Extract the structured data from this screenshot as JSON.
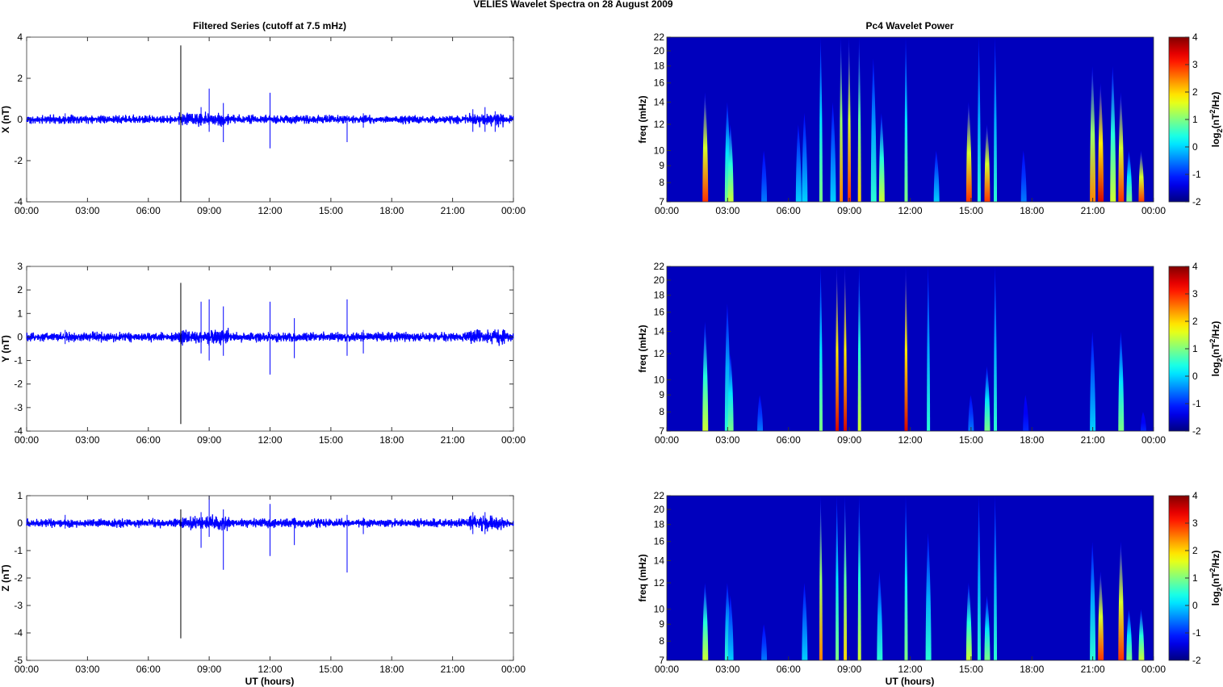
{
  "chart_data": {
    "title": "VELIES Wavelet Spectra on 28 August    2009",
    "time_ticks": [
      "00:00",
      "03:00",
      "06:00",
      "09:00",
      "12:00",
      "15:00",
      "18:00",
      "21:00",
      "00:00"
    ],
    "xlabel": "UT (hours)",
    "left": {
      "type": "line",
      "title": "Filtered Series (cutoff at 7.5 mHz)",
      "series_color": "#0000ff",
      "panels": [
        {
          "name": "X",
          "ylabel": "X (nT)",
          "ylim": [
            -4,
            4
          ],
          "yticks": [
            -4,
            -2,
            0,
            2,
            4
          ],
          "noise_amplitude": 0.15,
          "spikes": [
            [
              1.9,
              0.3,
              -0.2
            ],
            [
              7.6,
              3.6,
              -4
            ],
            [
              8.6,
              0.6,
              -0.3
            ],
            [
              9.0,
              1.5,
              -0.6
            ],
            [
              9.7,
              0.8,
              -1.1
            ],
            [
              12.0,
              1.3,
              -1.4
            ],
            [
              15.8,
              0.2,
              -1.1
            ],
            [
              16.6,
              0.3,
              -0.4
            ],
            [
              22.0,
              0.5,
              -0.6
            ],
            [
              22.6,
              0.6,
              -0.6
            ],
            [
              23.1,
              0.4,
              -0.6
            ]
          ]
        },
        {
          "name": "Y",
          "ylabel": "Y (nT)",
          "ylim": [
            -4,
            3
          ],
          "yticks": [
            -4,
            -3,
            -2,
            -1,
            0,
            1,
            2,
            3
          ],
          "noise_amplitude": 0.15,
          "spikes": [
            [
              1.9,
              0.3,
              -0.3
            ],
            [
              7.6,
              2.3,
              -3.7
            ],
            [
              8.6,
              1.5,
              -0.7
            ],
            [
              9.0,
              1.6,
              -1
            ],
            [
              9.7,
              1.3,
              -0.8
            ],
            [
              12.0,
              1.5,
              -1.6
            ],
            [
              13.2,
              0.8,
              -0.9
            ],
            [
              15.8,
              1.6,
              -0.8
            ],
            [
              16.6,
              0.3,
              -0.7
            ]
          ]
        },
        {
          "name": "Z",
          "ylabel": "Z (nT)",
          "ylim": [
            -5,
            1
          ],
          "yticks": [
            -5,
            -4,
            -3,
            -2,
            -1,
            0,
            1
          ],
          "noise_amplitude": 0.12,
          "spikes": [
            [
              1.9,
              0.3,
              -0.2
            ],
            [
              7.6,
              0.5,
              -4.2
            ],
            [
              8.6,
              0.4,
              -0.9
            ],
            [
              9.0,
              1,
              -0.5
            ],
            [
              9.7,
              0.5,
              -1.7
            ],
            [
              12.0,
              0.7,
              -1.2
            ],
            [
              13.2,
              0.2,
              -0.8
            ],
            [
              15.8,
              0.3,
              -1.8
            ],
            [
              16.6,
              0.2,
              -0.4
            ],
            [
              22.0,
              0.4,
              -0.4
            ],
            [
              22.6,
              0.4,
              -0.4
            ]
          ]
        }
      ]
    },
    "right": {
      "type": "heatmap",
      "title": "Pc4 Wavelet Power",
      "ylabel": "freq (mHz)",
      "ylim": [
        7,
        22
      ],
      "yticks": [
        7,
        8,
        9,
        10,
        12,
        14,
        16,
        18,
        20,
        22
      ],
      "colorbar": {
        "label": "log2(nT2/Hz)",
        "label_main": "log",
        "label_sub": "2",
        "label_rest1": "(nT",
        "label_sup": "2",
        "label_rest2": "/Hz)",
        "range": [
          -2,
          4
        ],
        "ticks": [
          -2,
          -1,
          0,
          1,
          2,
          3,
          4
        ]
      },
      "event_format": "[time_hours, max_freq_mHz, peak_log2_power]",
      "panels": [
        {
          "name": "X",
          "events": [
            [
              1.9,
              15,
              3
            ],
            [
              3.0,
              14,
              1
            ],
            [
              3.15,
              12,
              1.5
            ],
            [
              4.8,
              10,
              -0.5
            ],
            [
              6.5,
              12,
              0
            ],
            [
              6.8,
              13,
              0
            ],
            [
              7.6,
              22,
              1
            ],
            [
              8.2,
              14,
              0
            ],
            [
              8.6,
              22,
              2.5
            ],
            [
              9.0,
              22,
              3
            ],
            [
              9.5,
              22,
              2
            ],
            [
              10.2,
              19,
              0.5
            ],
            [
              10.6,
              13,
              1.5
            ],
            [
              11.8,
              22,
              1
            ],
            [
              13.3,
              10,
              0
            ],
            [
              14.9,
              14,
              3
            ],
            [
              15.4,
              22,
              0.5
            ],
            [
              15.8,
              12,
              3
            ],
            [
              16.2,
              22,
              0.5
            ],
            [
              17.6,
              10,
              -0.5
            ],
            [
              21.0,
              18,
              2.5
            ],
            [
              21.4,
              16,
              3.5
            ],
            [
              22.0,
              18,
              1.5
            ],
            [
              22.4,
              15,
              3
            ],
            [
              22.8,
              10,
              1
            ],
            [
              23.4,
              10,
              3
            ]
          ]
        },
        {
          "name": "Y",
          "events": [
            [
              1.9,
              15,
              1.5
            ],
            [
              3.0,
              17,
              0.5
            ],
            [
              3.15,
              12,
              1
            ],
            [
              4.6,
              9,
              -0.5
            ],
            [
              7.6,
              22,
              1
            ],
            [
              8.4,
              22,
              3.5
            ],
            [
              8.8,
              22,
              3.5
            ],
            [
              9.5,
              22,
              1.5
            ],
            [
              11.8,
              22,
              3.5
            ],
            [
              12.9,
              22,
              0.5
            ],
            [
              15.0,
              9,
              -0.5
            ],
            [
              15.8,
              11,
              1
            ],
            [
              16.2,
              22,
              0.5
            ],
            [
              17.7,
              9,
              -1
            ],
            [
              21.0,
              14,
              0
            ],
            [
              22.4,
              14,
              1
            ],
            [
              23.5,
              8,
              -1
            ]
          ]
        },
        {
          "name": "Z",
          "events": [
            [
              1.9,
              12,
              1.5
            ],
            [
              3.0,
              12,
              0.5
            ],
            [
              3.15,
              11,
              0
            ],
            [
              4.8,
              9,
              -0.5
            ],
            [
              6.8,
              12,
              0
            ],
            [
              7.6,
              22,
              2.5
            ],
            [
              8.4,
              22,
              1
            ],
            [
              8.8,
              22,
              2
            ],
            [
              9.5,
              22,
              1.5
            ],
            [
              10.5,
              13,
              0.5
            ],
            [
              11.8,
              22,
              1
            ],
            [
              12.9,
              17,
              0.5
            ],
            [
              14.9,
              12,
              1.5
            ],
            [
              15.4,
              22,
              0.5
            ],
            [
              15.8,
              11,
              1
            ],
            [
              16.2,
              22,
              0.5
            ],
            [
              21.0,
              16,
              0.5
            ],
            [
              21.4,
              13,
              3
            ],
            [
              22.4,
              16,
              3
            ],
            [
              22.8,
              10,
              1
            ],
            [
              23.4,
              10,
              1.5
            ]
          ]
        }
      ]
    }
  }
}
